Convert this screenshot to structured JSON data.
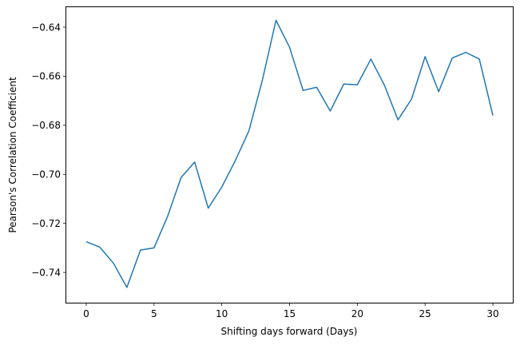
{
  "chart_data": {
    "type": "line",
    "title": "",
    "xlabel": "Shifting days forward (Days)",
    "ylabel": "Pearson's Correlation Coefficient",
    "xlim": [
      -1.5,
      31.5
    ],
    "ylim": [
      -0.7525,
      -0.6317
    ],
    "x_ticks": [
      0,
      5,
      10,
      15,
      20,
      25,
      30
    ],
    "x_tick_labels": [
      "0",
      "5",
      "10",
      "15",
      "20",
      "25",
      "30"
    ],
    "y_ticks": [
      -0.74,
      -0.72,
      -0.7,
      -0.68,
      -0.66,
      -0.64
    ],
    "y_tick_labels": [
      "−0.74",
      "−0.72",
      "−0.70",
      "−0.68",
      "−0.66",
      "−0.64"
    ],
    "grid": false,
    "legend": "none",
    "line_color": "#1f77b4",
    "series": [
      {
        "x": [
          0,
          1,
          2,
          3,
          4,
          5,
          6,
          7,
          8,
          9,
          10,
          11,
          12,
          13,
          14,
          15,
          16,
          17,
          18,
          19,
          20,
          21,
          22,
          23,
          24,
          25,
          26,
          27,
          28,
          29,
          30
        ],
        "values": [
          -0.7275,
          -0.7297,
          -0.7362,
          -0.7461,
          -0.7309,
          -0.73,
          -0.7172,
          -0.7013,
          -0.695,
          -0.7138,
          -0.7052,
          -0.6944,
          -0.6823,
          -0.6615,
          -0.6372,
          -0.6482,
          -0.6658,
          -0.6645,
          -0.6742,
          -0.6632,
          -0.6635,
          -0.653,
          -0.6637,
          -0.6778,
          -0.6693,
          -0.652,
          -0.6663,
          -0.6526,
          -0.6503,
          -0.653,
          -0.676
        ]
      }
    ]
  }
}
